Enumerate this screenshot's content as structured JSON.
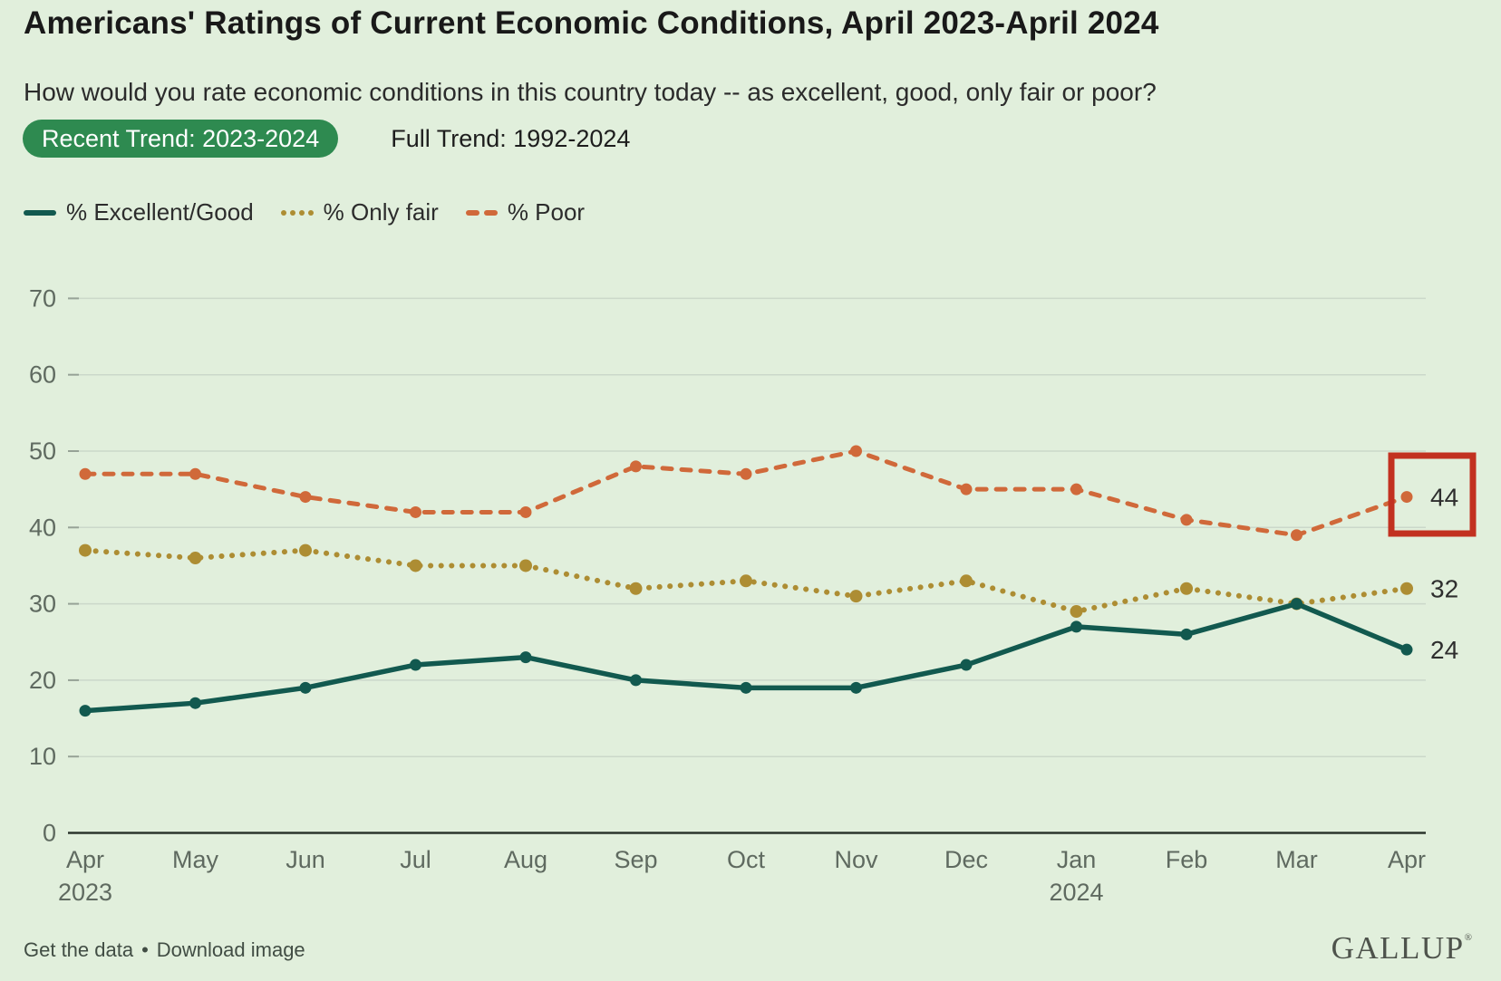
{
  "header": {
    "title": "Americans' Ratings of Current Economic Conditions, April 2023-April 2024",
    "subtitle": "How would you rate economic conditions in this country today -- as excellent, good, only fair or poor?",
    "tabs": [
      {
        "label": "Recent Trend: 2023-2024",
        "active": true
      },
      {
        "label": "Full Trend: 1992-2024",
        "active": false
      }
    ]
  },
  "colors": {
    "background": "#e1efdc",
    "tab_active_bg": "#2e8a50",
    "tab_active_text": "#ffffff",
    "grid_line": "#cbd8ca",
    "tick_stub": "#96a296",
    "axis_line": "#2b352d",
    "tick_text": "#5f6a60",
    "end_label_text": "#2e2e2e",
    "highlight_box": "#c23120"
  },
  "chart_data": {
    "type": "line",
    "title": "Americans' Ratings of Current Economic Conditions, April 2023-April 2024",
    "x_categories": [
      "Apr",
      "May",
      "Jun",
      "Jul",
      "Aug",
      "Sep",
      "Oct",
      "Nov",
      "Dec",
      "Jan",
      "Feb",
      "Mar",
      "Apr"
    ],
    "year_labels": [
      {
        "index": 0,
        "text": "2023"
      },
      {
        "index": 9,
        "text": "2024"
      }
    ],
    "series": [
      {
        "name": "% Excellent/Good",
        "style": "solid",
        "color": "#12594f",
        "values": [
          16,
          17,
          19,
          22,
          23,
          20,
          19,
          19,
          22,
          27,
          26,
          30,
          24
        ]
      },
      {
        "name": "% Only fair",
        "style": "dotted",
        "color": "#ad8d33",
        "values": [
          37,
          36,
          37,
          35,
          35,
          32,
          33,
          31,
          33,
          29,
          32,
          30,
          32
        ]
      },
      {
        "name": "% Poor",
        "style": "dashed",
        "color": "#d0693a",
        "values": [
          47,
          47,
          44,
          42,
          42,
          48,
          47,
          50,
          45,
          45,
          41,
          39,
          44
        ]
      }
    ],
    "ylim": [
      0,
      70
    ],
    "yticks": [
      0,
      10,
      20,
      30,
      40,
      50,
      60,
      70
    ],
    "grid": true,
    "legend_position": "top-left",
    "end_labels": {
      "excellent_good": "24",
      "only_fair": "32",
      "poor": "44"
    },
    "highlight": {
      "series": "% Poor",
      "value": 44
    }
  },
  "footer": {
    "links": [
      {
        "label": "Get the data"
      },
      {
        "label": "Download image"
      }
    ],
    "separator": "•",
    "brand": "GALLUP",
    "brand_mark": "®"
  }
}
